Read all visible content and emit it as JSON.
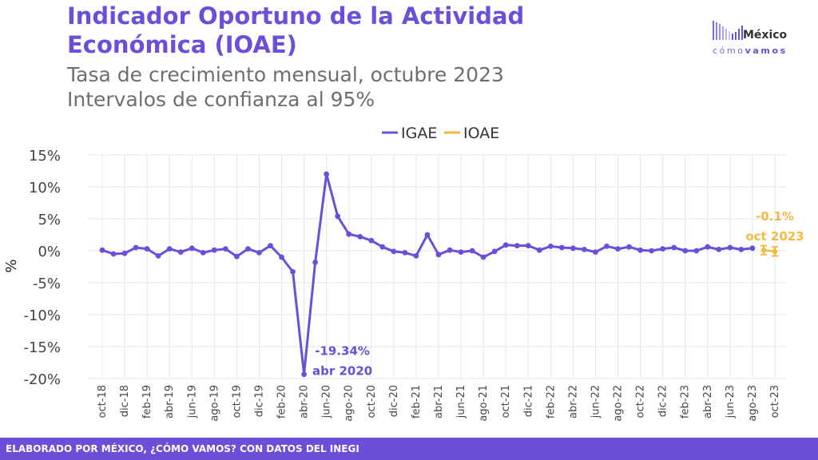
{
  "header": {
    "title": "Indicador Oportuno de la Actividad Económica (IOAE)",
    "subtitle_line1": "Tasa de crecimiento mensual, octubre 2023",
    "subtitle_line2": "Intervalos de confianza al 95%"
  },
  "logo": {
    "word": "México",
    "sub_a": "cómo",
    "sub_b": "vamos"
  },
  "footer": {
    "text": "ELABORADO POR MÉXICO, ¿CÓMO VAMOS? CON DATOS DEL INEGI"
  },
  "colors": {
    "igae": "#6b4fd8",
    "ioae": "#f5b942",
    "axis_text": "#444444",
    "grid": "#e6e6e6"
  },
  "chart_data": {
    "type": "line",
    "ylabel": "%",
    "ylim": [
      -20,
      15
    ],
    "yticks": [
      15,
      10,
      5,
      0,
      -5,
      -10,
      -15,
      -20
    ],
    "ytick_labels": [
      "15%",
      "10%",
      "5%",
      "0%",
      "-5%",
      "-10%",
      "-15%",
      "-20%"
    ],
    "x": [
      "oct-18",
      "nov-18",
      "dic-18",
      "ene-19",
      "feb-19",
      "mar-19",
      "abr-19",
      "may-19",
      "jun-19",
      "jul-19",
      "ago-19",
      "sep-19",
      "oct-19",
      "nov-19",
      "dic-19",
      "ene-20",
      "feb-20",
      "mar-20",
      "abr-20",
      "may-20",
      "jun-20",
      "jul-20",
      "ago-20",
      "sep-20",
      "oct-20",
      "nov-20",
      "dic-20",
      "ene-21",
      "feb-21",
      "mar-21",
      "abr-21",
      "may-21",
      "jun-21",
      "jul-21",
      "ago-21",
      "sep-21",
      "oct-21",
      "nov-21",
      "dic-21",
      "ene-22",
      "feb-22",
      "mar-22",
      "abr-22",
      "may-22",
      "jun-22",
      "jul-22",
      "ago-22",
      "sep-22",
      "oct-22",
      "nov-22",
      "dic-22",
      "ene-23",
      "feb-23",
      "mar-23",
      "abr-23",
      "may-23",
      "jun-23",
      "jul-23",
      "ago-23",
      "sep-23",
      "oct-23"
    ],
    "xtick_labels": [
      "oct-18",
      "dic-18",
      "feb-19",
      "abr-19",
      "jun-19",
      "ago-19",
      "oct-19",
      "dic-19",
      "feb-20",
      "abr-20",
      "jun-20",
      "ago-20",
      "oct-20",
      "dic-20",
      "feb-21",
      "abr-21",
      "jun-21",
      "ago-21",
      "oct-21",
      "dic-21",
      "feb-22",
      "abr-22",
      "jun-22",
      "ago-22",
      "oct-22",
      "dic-22",
      "feb-23",
      "abr-23",
      "jun-23",
      "ago-23",
      "oct-23"
    ],
    "legend": [
      "IGAE",
      "IOAE"
    ],
    "legend_position": "top-center",
    "grid": true,
    "series": [
      {
        "name": "IGAE",
        "values": [
          0.1,
          -0.5,
          -0.4,
          0.5,
          0.3,
          -0.8,
          0.3,
          -0.2,
          0.4,
          -0.3,
          0.1,
          0.3,
          -0.9,
          0.3,
          -0.3,
          0.8,
          -1.0,
          -3.3,
          -19.34,
          -1.8,
          12.0,
          5.4,
          2.6,
          2.2,
          1.6,
          0.6,
          -0.1,
          -0.3,
          -0.8,
          2.5,
          -0.6,
          0.1,
          -0.2,
          0.0,
          -1.0,
          -0.1,
          0.9,
          0.8,
          0.8,
          0.1,
          0.7,
          0.5,
          0.4,
          0.2,
          -0.2,
          0.7,
          0.3,
          0.6,
          0.1,
          0.0,
          0.3,
          0.5,
          0.0,
          0.0,
          0.6,
          0.2,
          0.5,
          0.2,
          0.4,
          null,
          null
        ]
      },
      {
        "name": "IOAE",
        "points": [
          {
            "x": "sep-23",
            "value": 0.1,
            "low": -0.6,
            "high": 0.8
          },
          {
            "x": "oct-23",
            "value": -0.1,
            "low": -0.8,
            "high": 0.6
          }
        ]
      }
    ],
    "annotations": [
      {
        "x": "abr-20",
        "line1": "-19.34%",
        "line2": "abr 2020",
        "series": "IGAE"
      },
      {
        "x": "oct-23",
        "line1": "-0.1%",
        "line2": "oct 2023",
        "series": "IOAE"
      }
    ]
  }
}
